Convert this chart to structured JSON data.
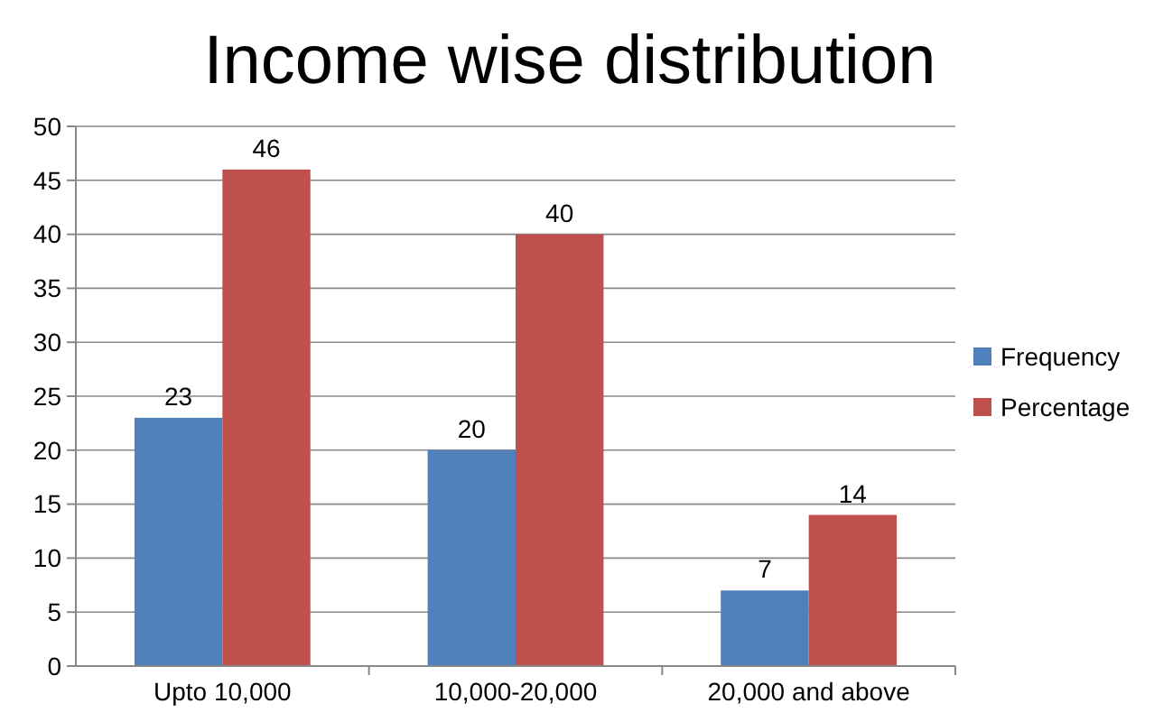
{
  "chart_data": {
    "type": "bar",
    "title": "Income wise distribution",
    "categories": [
      "Upto 10,000",
      "10,000-20,000",
      "20,000 and above"
    ],
    "series": [
      {
        "name": "Frequency",
        "color": "#4f81bd",
        "values": [
          23,
          20,
          7
        ]
      },
      {
        "name": "Percentage",
        "color": "#c0504d",
        "values": [
          46,
          40,
          14
        ]
      }
    ],
    "ylim": [
      0,
      50
    ],
    "yticks": [
      0,
      5,
      10,
      15,
      20,
      25,
      30,
      35,
      40,
      45,
      50
    ],
    "grid": "y",
    "legend": "right",
    "data_labels": true
  }
}
